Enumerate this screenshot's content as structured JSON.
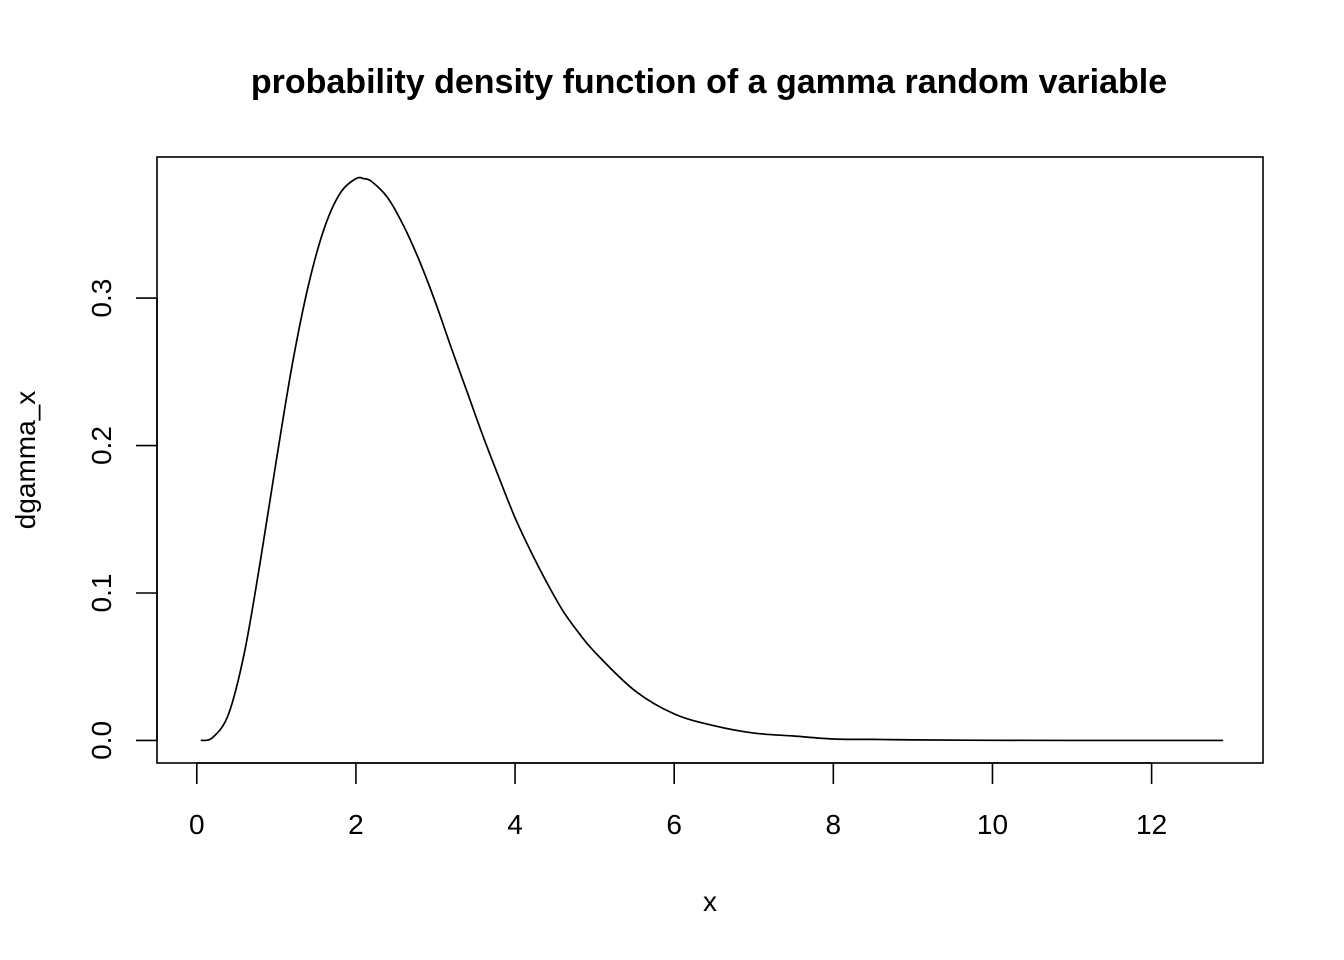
{
  "chart_data": {
    "type": "line",
    "title": "probability density function of a gamma random variable",
    "xlabel": "x",
    "ylabel": "dgamma_x",
    "xlim": [
      -0.5,
      13.4
    ],
    "ylim": [
      -0.0153,
      0.3957
    ],
    "x_ticks": [
      0,
      2,
      4,
      6,
      8,
      10,
      12
    ],
    "x_tick_labels": [
      "0",
      "2",
      "4",
      "6",
      "8",
      "10",
      "12"
    ],
    "y_ticks": [
      0.0,
      0.1,
      0.2,
      0.3
    ],
    "y_tick_labels": [
      "0.0",
      "0.1",
      "0.2",
      "0.3"
    ],
    "grid": false,
    "legend": "none",
    "colors": {
      "line": "#000000",
      "background": "#ffffff"
    },
    "series": [
      {
        "x": [
          0.05,
          0.2,
          0.4,
          0.6,
          0.8,
          1.0,
          1.2,
          1.4,
          1.6,
          1.8,
          2.0,
          2.1,
          2.2,
          2.4,
          2.6,
          2.8,
          3.0,
          3.2,
          3.4,
          3.6,
          3.8,
          4.0,
          4.2,
          4.4,
          4.6,
          4.8,
          5.0,
          5.5,
          6.0,
          6.5,
          7.0,
          7.5,
          8.0,
          8.5,
          9.0,
          10.0,
          11.0,
          12.0,
          12.9
        ],
        "y": [
          0.0,
          0.002,
          0.018,
          0.06,
          0.122,
          0.19,
          0.255,
          0.308,
          0.347,
          0.371,
          0.381,
          0.381,
          0.379,
          0.368,
          0.349,
          0.325,
          0.297,
          0.266,
          0.236,
          0.206,
          0.178,
          0.151,
          0.128,
          0.107,
          0.088,
          0.073,
          0.06,
          0.034,
          0.018,
          0.01,
          0.005,
          0.003,
          0.001,
          0.0007,
          0.0004,
          0.0001,
          0.0,
          0.0,
          0.0
        ]
      }
    ]
  }
}
